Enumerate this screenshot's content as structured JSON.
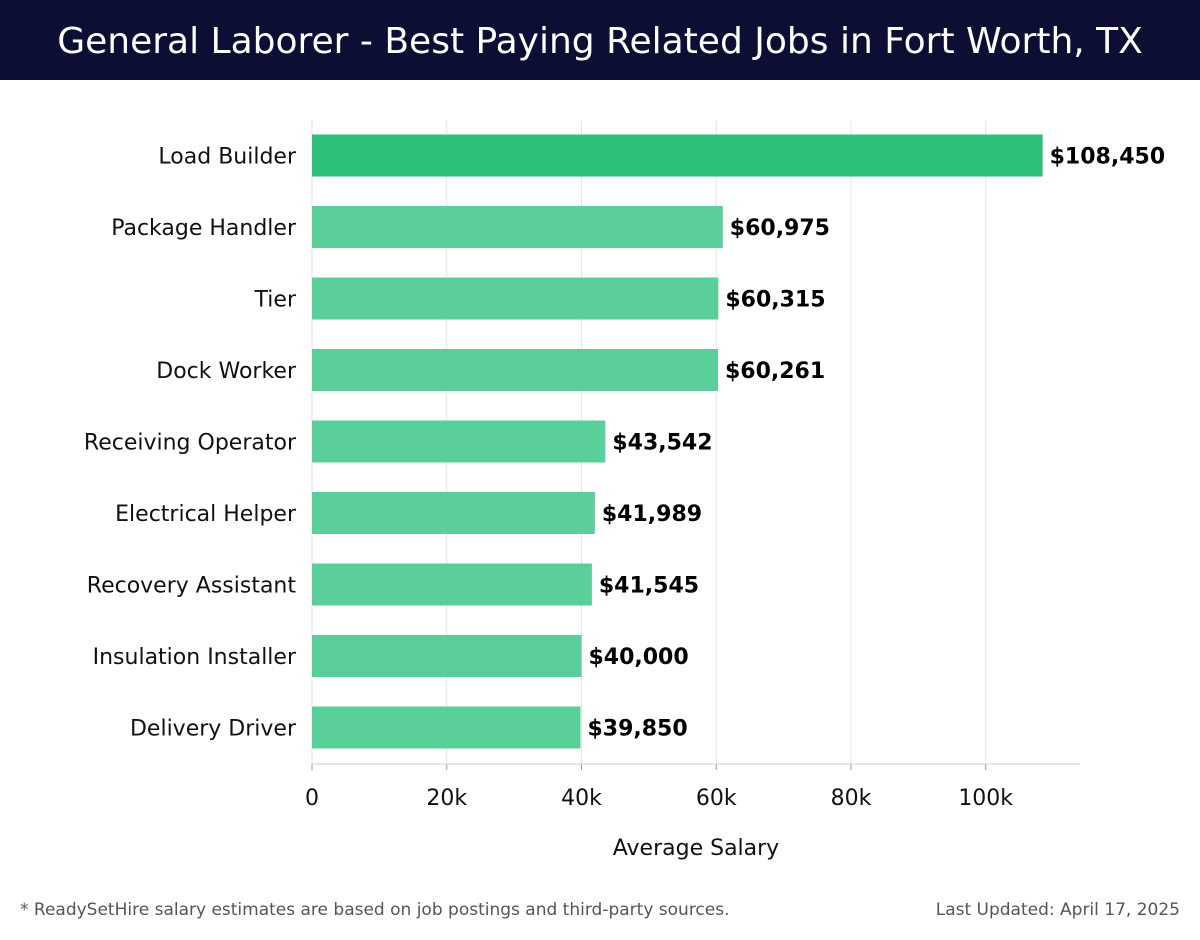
{
  "title": "General Laborer - Best Paying Related Jobs in Fort Worth, TX",
  "footer": {
    "note": "* ReadySetHire salary estimates are based on job postings and third-party sources.",
    "updated": "Last Updated: April 17, 2025"
  },
  "colors": {
    "header_bg": "#0c0f33",
    "top_bar": "#2dbf78",
    "bar": "#52cc93"
  },
  "chart_data": {
    "type": "bar",
    "orientation": "horizontal",
    "title": "General Laborer - Best Paying Related Jobs in Fort Worth, TX",
    "xlabel": "Average Salary",
    "ylabel": "",
    "categories": [
      "Load Builder",
      "Package Handler",
      "Tier",
      "Dock Worker",
      "Receiving Operator",
      "Electrical Helper",
      "Recovery Assistant",
      "Insulation Installer",
      "Delivery Driver"
    ],
    "values": [
      108450,
      60975,
      60315,
      60261,
      43542,
      41989,
      41545,
      40000,
      39850
    ],
    "value_labels": [
      "$108,450",
      "$60,975",
      "$60,315",
      "$60,261",
      "$43,542",
      "$41,989",
      "$41,545",
      "$40,000",
      "$39,850"
    ],
    "xlim": [
      0,
      114000
    ],
    "xticks": [
      0,
      20000,
      40000,
      60000,
      80000,
      100000
    ],
    "xtick_labels": [
      "0",
      "20k",
      "40k",
      "60k",
      "80k",
      "100k"
    ],
    "grid": true
  }
}
